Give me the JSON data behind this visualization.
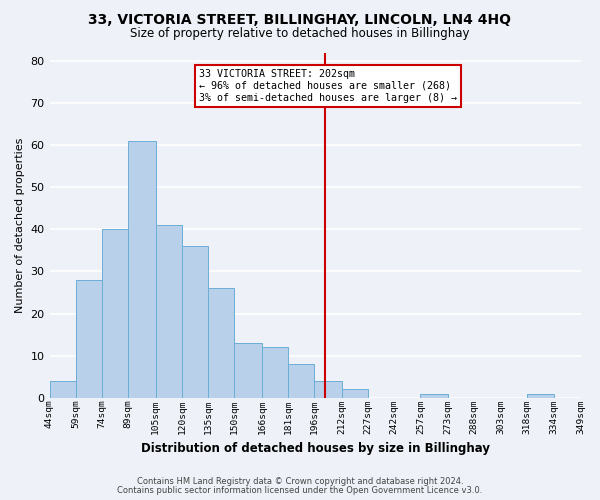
{
  "title": "33, VICTORIA STREET, BILLINGHAY, LINCOLN, LN4 4HQ",
  "subtitle": "Size of property relative to detached houses in Billinghay",
  "xlabel": "Distribution of detached houses by size in Billinghay",
  "ylabel": "Number of detached properties",
  "bin_labels": [
    "44sqm",
    "59sqm",
    "74sqm",
    "89sqm",
    "105sqm",
    "120sqm",
    "135sqm",
    "150sqm",
    "166sqm",
    "181sqm",
    "196sqm",
    "212sqm",
    "227sqm",
    "242sqm",
    "257sqm",
    "273sqm",
    "288sqm",
    "303sqm",
    "318sqm",
    "334sqm",
    "349sqm"
  ],
  "bar_heights": [
    4,
    28,
    40,
    61,
    41,
    36,
    26,
    13,
    12,
    8,
    4,
    2,
    0,
    0,
    1,
    0,
    0,
    0,
    1,
    0
  ],
  "bin_edges": [
    44,
    59,
    74,
    89,
    105,
    120,
    135,
    150,
    166,
    181,
    196,
    212,
    227,
    242,
    257,
    273,
    288,
    303,
    318,
    334,
    349
  ],
  "bar_color": "#b8d0ea",
  "bar_edge_color": "#6aaed6",
  "vline_x": 202,
  "vline_color": "#cc0000",
  "vline_label": "33 VICTORIA STREET: 202sqm",
  "annotation_line1": "← 96% of detached houses are smaller (268)",
  "annotation_line2": "3% of semi-detached houses are larger (8) →",
  "annotation_box_facecolor": "#ffffff",
  "annotation_box_edge": "#cc0000",
  "ylim": [
    0,
    82
  ],
  "yticks": [
    0,
    10,
    20,
    30,
    40,
    50,
    60,
    70,
    80
  ],
  "bg_color": "#eef2f8",
  "grid_color": "#ffffff",
  "footnote1": "Contains HM Land Registry data © Crown copyright and database right 2024.",
  "footnote2": "Contains public sector information licensed under the Open Government Licence v3.0."
}
